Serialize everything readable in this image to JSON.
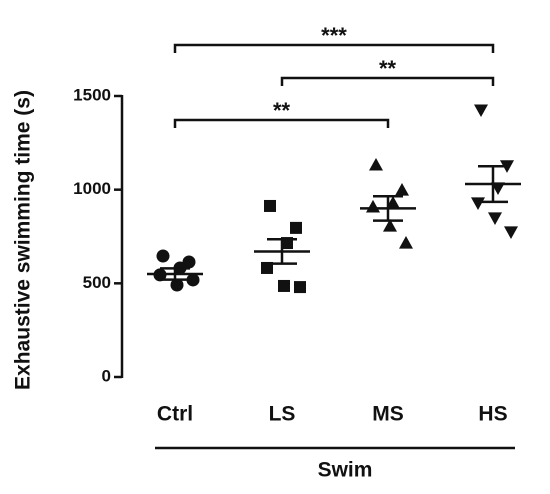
{
  "chart_data": {
    "type": "dot",
    "ylabel": "Exhaustive swimming time (s)",
    "categories": [
      "Ctrl",
      "LS",
      "MS",
      "HS"
    ],
    "group_label": "Swim",
    "points": [
      [
        646,
        614,
        582,
        545,
        491,
        518
      ],
      [
        913,
        796,
        715,
        582,
        486,
        480
      ],
      [
        1132,
        998,
        929,
        908,
        806,
        715
      ],
      [
        1425,
        1127,
        1009,
        929,
        849,
        774
      ]
    ],
    "means": [
      550,
      670,
      900,
      1030
    ],
    "sems": [
      30,
      65,
      65,
      95
    ],
    "markers": [
      "circle",
      "square",
      "triangle-up",
      "triangle-down"
    ],
    "color": "#111111",
    "ylim": [
      0,
      1500
    ],
    "yticks": [
      0,
      500,
      1000,
      1500
    ],
    "brackets": [
      {
        "from": 0,
        "to": 3,
        "label": "***"
      },
      {
        "from": 1,
        "to": 3,
        "label": "**"
      },
      {
        "from": 0,
        "to": 2,
        "label": "**"
      }
    ]
  }
}
